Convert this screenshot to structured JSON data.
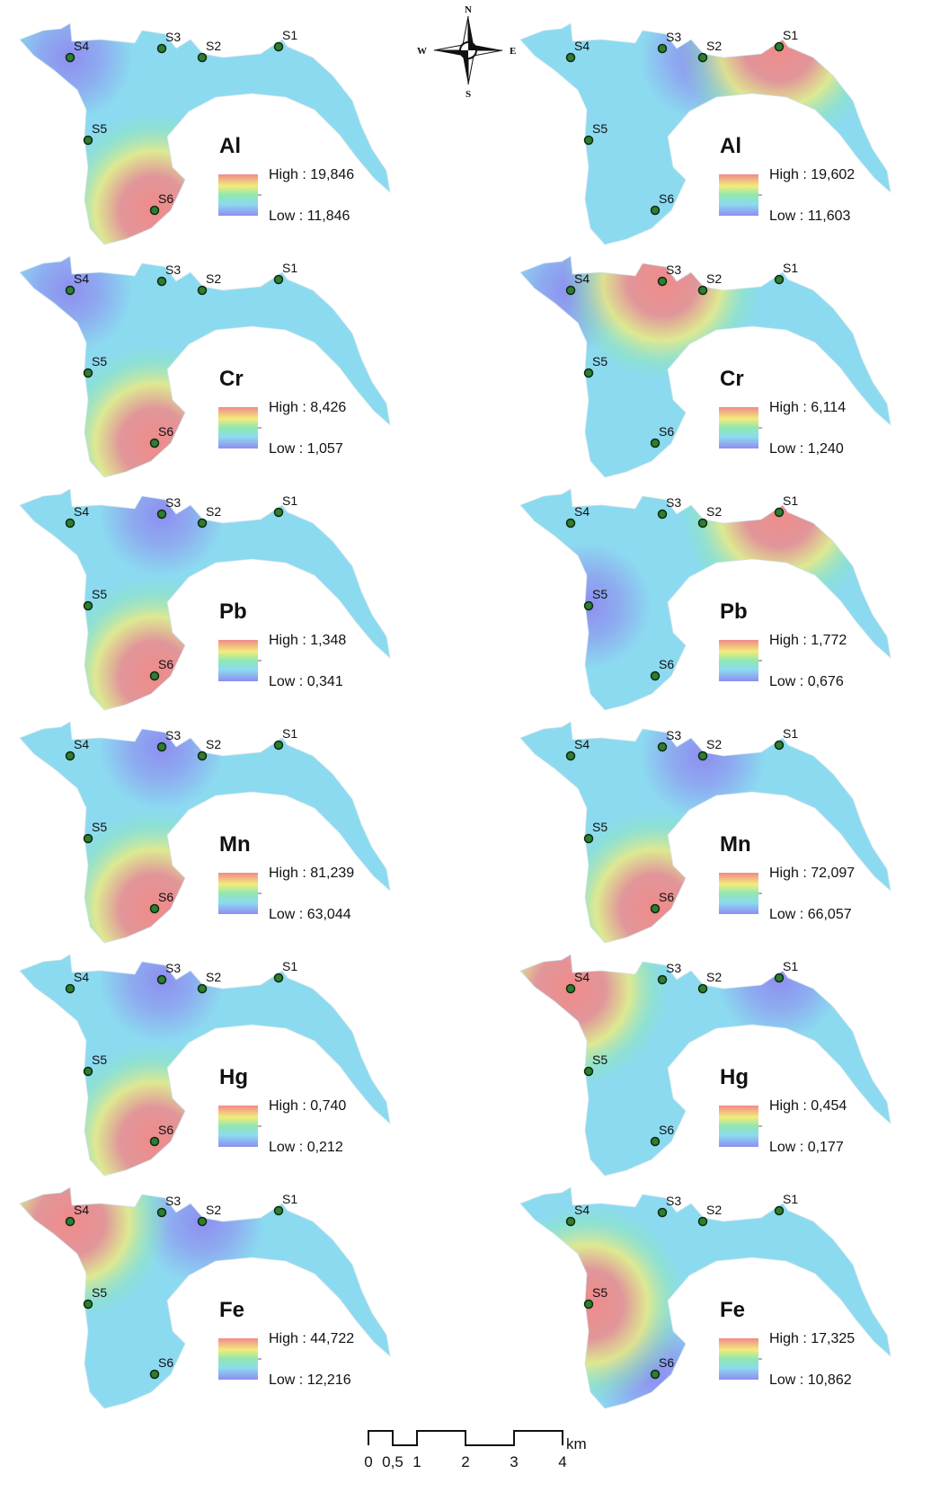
{
  "compass": {
    "n": "N",
    "s": "S",
    "e": "E",
    "w": "W"
  },
  "scale_bar": {
    "ticks": [
      "0",
      "0,5",
      "1",
      "2",
      "3",
      "4"
    ],
    "unit": "km"
  },
  "legend_prefix": {
    "high": "High : ",
    "low": "Low : "
  },
  "colors": {
    "high": "#f08a8a",
    "mid_high": "#f2ec7a",
    "mid": "#8ee8b0",
    "mid_low": "#8cdaf0",
    "low": "#8e8ef0",
    "site": "#2e7d32"
  },
  "panels": [
    {
      "element": "Al",
      "column": "left",
      "high": "19,846",
      "low": "11,846",
      "sites": [
        "S1",
        "S2",
        "S3",
        "S4",
        "S5",
        "S6"
      ],
      "hotspot": "S6",
      "coldspot": "S4"
    },
    {
      "element": "Al",
      "column": "right",
      "high": "19,602",
      "low": "11,603",
      "sites": [
        "S1",
        "S2",
        "S3",
        "S4",
        "S5",
        "S6"
      ],
      "hotspot": "S1",
      "coldspot": "S2"
    },
    {
      "element": "Cr",
      "column": "left",
      "high": "8,426",
      "low": "1,057",
      "sites": [
        "S1",
        "S2",
        "S3",
        "S4",
        "S5",
        "S6"
      ],
      "hotspot": "S6",
      "coldspot": "S4"
    },
    {
      "element": "Cr",
      "column": "right",
      "high": "6,114",
      "low": "1,240",
      "sites": [
        "S1",
        "S2",
        "S3",
        "S4",
        "S5",
        "S6"
      ],
      "hotspot": "S3",
      "coldspot": "S4"
    },
    {
      "element": "Pb",
      "column": "left",
      "high": "1,348",
      "low": "0,341",
      "sites": [
        "S1",
        "S2",
        "S3",
        "S4",
        "S5",
        "S6"
      ],
      "hotspot": "S6",
      "coldspot": "S3"
    },
    {
      "element": "Pb",
      "column": "right",
      "high": "1,772",
      "low": "0,676",
      "sites": [
        "S1",
        "S2",
        "S3",
        "S4",
        "S5",
        "S6"
      ],
      "hotspot": "S1",
      "coldspot": "S5"
    },
    {
      "element": "Mn",
      "column": "left",
      "high": "81,239",
      "low": "63,044",
      "sites": [
        "S1",
        "S2",
        "S3",
        "S4",
        "S5",
        "S6"
      ],
      "hotspot": "S6",
      "coldspot": "S3"
    },
    {
      "element": "Mn",
      "column": "right",
      "high": "72,097",
      "low": "66,057",
      "sites": [
        "S1",
        "S2",
        "S3",
        "S4",
        "S5",
        "S6"
      ],
      "hotspot": "S6",
      "coldspot": "S2"
    },
    {
      "element": "Hg",
      "column": "left",
      "high": "0,740",
      "low": "0,212",
      "sites": [
        "S1",
        "S2",
        "S3",
        "S4",
        "S5",
        "S6"
      ],
      "hotspot": "S6",
      "coldspot": "S3"
    },
    {
      "element": "Hg",
      "column": "right",
      "high": "0,454",
      "low": "0,177",
      "sites": [
        "S1",
        "S2",
        "S3",
        "S4",
        "S5",
        "S6"
      ],
      "hotspot": "S4",
      "coldspot": "S1"
    },
    {
      "element": "Fe",
      "column": "left",
      "high": "44,722",
      "low": "12,216",
      "sites": [
        "S1",
        "S2",
        "S3",
        "S4",
        "S5",
        "S6"
      ],
      "hotspot": "S4",
      "coldspot": "S2"
    },
    {
      "element": "Fe",
      "column": "right",
      "high": "17,325",
      "low": "10,862",
      "sites": [
        "S1",
        "S2",
        "S3",
        "S4",
        "S5",
        "S6"
      ],
      "hotspot": "S5",
      "coldspot": "S6"
    }
  ]
}
